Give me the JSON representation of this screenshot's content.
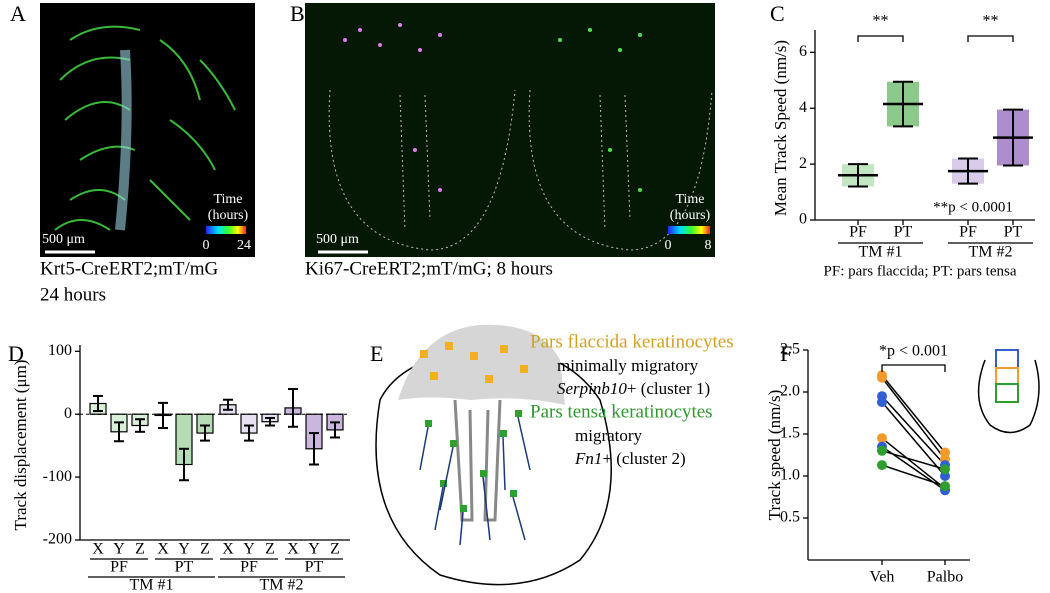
{
  "figure": {
    "panel_labels": [
      "A",
      "B",
      "C",
      "D",
      "E",
      "F"
    ],
    "A": {
      "caption": [
        "Krt5-CreERT2;mT/mG",
        "24 hours"
      ],
      "scale_bar": "500 μm",
      "colorbar_title": [
        "Time",
        "(hours)"
      ],
      "colorbar_ticks": [
        "0",
        "24"
      ]
    },
    "B": {
      "caption": "Ki67-CreERT2;mT/mG; 8 hours",
      "scale_bar": "500 μm",
      "colorbar_title": [
        "Time",
        "(hours)"
      ],
      "colorbar_ticks": [
        "0",
        "8"
      ]
    },
    "E": {
      "pf_title": "Pars flaccida keratinocytes",
      "pf_line1": "minimally migratory",
      "pf_gene": "Serpinb10",
      "pf_rest": "+ (cluster 1)",
      "pt_title": "Pars tensa keratinocytes",
      "pt_line1": "migratory",
      "pt_gene": "Fn1",
      "pt_rest": "+ (cluster 2)"
    }
  },
  "chart_data": [
    {
      "type": "dotplot",
      "y_label": "Mean Track Speed (nm/s)",
      "categories": [
        "PF",
        "PT",
        "PF",
        "PT"
      ],
      "groups": [
        "TM #1",
        "TM #2"
      ],
      "values": [
        1.6,
        4.15,
        1.75,
        2.95
      ],
      "errors": [
        0.4,
        0.8,
        0.45,
        1.0
      ],
      "colors": [
        "#8fd18f",
        "#2e9e2e",
        "#b9a3d9",
        "#6a2fa0"
      ],
      "ylim": [
        0,
        6.8
      ],
      "yticks": [
        0,
        2,
        4,
        6
      ],
      "annotations": [
        "**",
        "**",
        "**p < 0.0001"
      ],
      "footnote": "PF: pars flaccida; PT: pars tensa"
    },
    {
      "type": "bar",
      "y_label": "Track displacement (μm)",
      "categories": [
        "X",
        "Y",
        "Z",
        "X",
        "Y",
        "Z",
        "X",
        "Y",
        "Z",
        "X",
        "Y",
        "Z"
      ],
      "subgroups": [
        "PF",
        "PT",
        "PF",
        "PT"
      ],
      "groups": [
        "TM #1",
        "TM #2"
      ],
      "values": [
        17,
        -28,
        -18,
        -2,
        -80,
        -30,
        15,
        -30,
        -12,
        10,
        -55,
        -25
      ],
      "errors": [
        12,
        15,
        10,
        20,
        25,
        12,
        8,
        12,
        6,
        30,
        25,
        12
      ],
      "colors": [
        "#8fd18f",
        "#2e9e2e",
        "#b9a3d9",
        "#6a2fa0"
      ],
      "ylim": [
        -200,
        110
      ],
      "yticks": [
        -200,
        -100,
        0,
        100
      ]
    },
    {
      "type": "line",
      "y_label": "Track speed (nm/s)",
      "categories": [
        "Veh",
        "Palbo"
      ],
      "series": [
        {
          "color": "#f39a2b",
          "values": [
            2.2,
            1.28
          ]
        },
        {
          "color": "#f39a2b",
          "values": [
            2.17,
            1.2
          ]
        },
        {
          "color": "#2f5fd0",
          "values": [
            1.95,
            1.13
          ]
        },
        {
          "color": "#2f5fd0",
          "values": [
            1.88,
            1.0
          ]
        },
        {
          "color": "#f39a2b",
          "values": [
            1.45,
            0.85
          ]
        },
        {
          "color": "#2f5fd0",
          "values": [
            1.35,
            0.83
          ]
        },
        {
          "color": "#2e9e2e",
          "values": [
            1.3,
            1.08
          ]
        },
        {
          "color": "#2e9e2e",
          "values": [
            1.13,
            0.88
          ]
        }
      ],
      "line_color": "#000",
      "ylim": [
        0,
        2.5
      ],
      "yticks": [
        0.5,
        {
          "value": 1,
          "label": "1.0"
        },
        1.5,
        {
          "value": 2,
          "label": "2.0"
        },
        2.5
      ],
      "annotations": [
        "*p < 0.001"
      ]
    }
  ]
}
